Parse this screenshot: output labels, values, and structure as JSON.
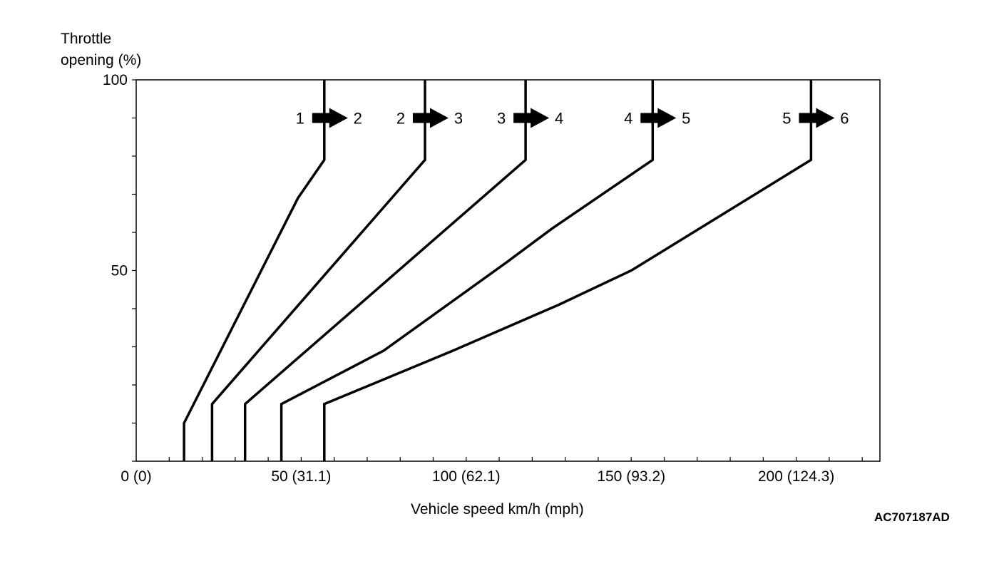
{
  "chart_data": {
    "type": "line",
    "ylabel_line1": "Throttle",
    "ylabel_line2": "opening (%)",
    "xlabel": "Vehicle speed km/h (mph)",
    "figure_code": "AC707187AD",
    "xlim": [
      0,
      225
    ],
    "ylim": [
      0,
      100
    ],
    "x_ticks": [
      {
        "value": 0,
        "label": "0 (0)"
      },
      {
        "value": 50,
        "label": "50 (31.1)"
      },
      {
        "value": 100,
        "label": "100 (62.1)"
      },
      {
        "value": 150,
        "label": "150 (93.2)"
      },
      {
        "value": 200,
        "label": "200 (124.3)"
      }
    ],
    "y_ticks": [
      {
        "value": 0,
        "label": ""
      },
      {
        "value": 50,
        "label": "50"
      },
      {
        "value": 100,
        "label": "100"
      }
    ],
    "y_minor_step": 10,
    "x_minor_step": 10,
    "series": [
      {
        "name": "1 → 2",
        "from": "1",
        "to": "2",
        "points": [
          [
            14.5,
            0
          ],
          [
            14.5,
            10
          ],
          [
            49,
            69
          ],
          [
            57,
            79
          ],
          [
            57,
            100
          ]
        ]
      },
      {
        "name": "2 → 3",
        "from": "2",
        "to": "3",
        "points": [
          [
            23,
            0
          ],
          [
            23,
            15
          ],
          [
            87.5,
            79
          ],
          [
            87.5,
            100
          ]
        ]
      },
      {
        "name": "3 → 4",
        "from": "3",
        "to": "4",
        "points": [
          [
            33,
            0
          ],
          [
            33,
            15
          ],
          [
            118,
            79
          ],
          [
            118,
            100
          ]
        ]
      },
      {
        "name": "4 → 5",
        "from": "4",
        "to": "5",
        "points": [
          [
            44,
            0
          ],
          [
            44,
            15
          ],
          [
            75,
            29
          ],
          [
            112,
            52
          ],
          [
            126,
            61
          ],
          [
            156.5,
            79
          ],
          [
            156.5,
            100
          ]
        ]
      },
      {
        "name": "5 → 6",
        "from": "5",
        "to": "6",
        "points": [
          [
            57,
            0
          ],
          [
            57,
            15
          ],
          [
            96,
            29
          ],
          [
            128,
            41
          ],
          [
            150,
            50
          ],
          [
            204.5,
            79
          ],
          [
            204.5,
            100
          ]
        ]
      }
    ],
    "shift_label_y": 90,
    "colors": {
      "line": "#000000",
      "background": "#ffffff"
    }
  }
}
